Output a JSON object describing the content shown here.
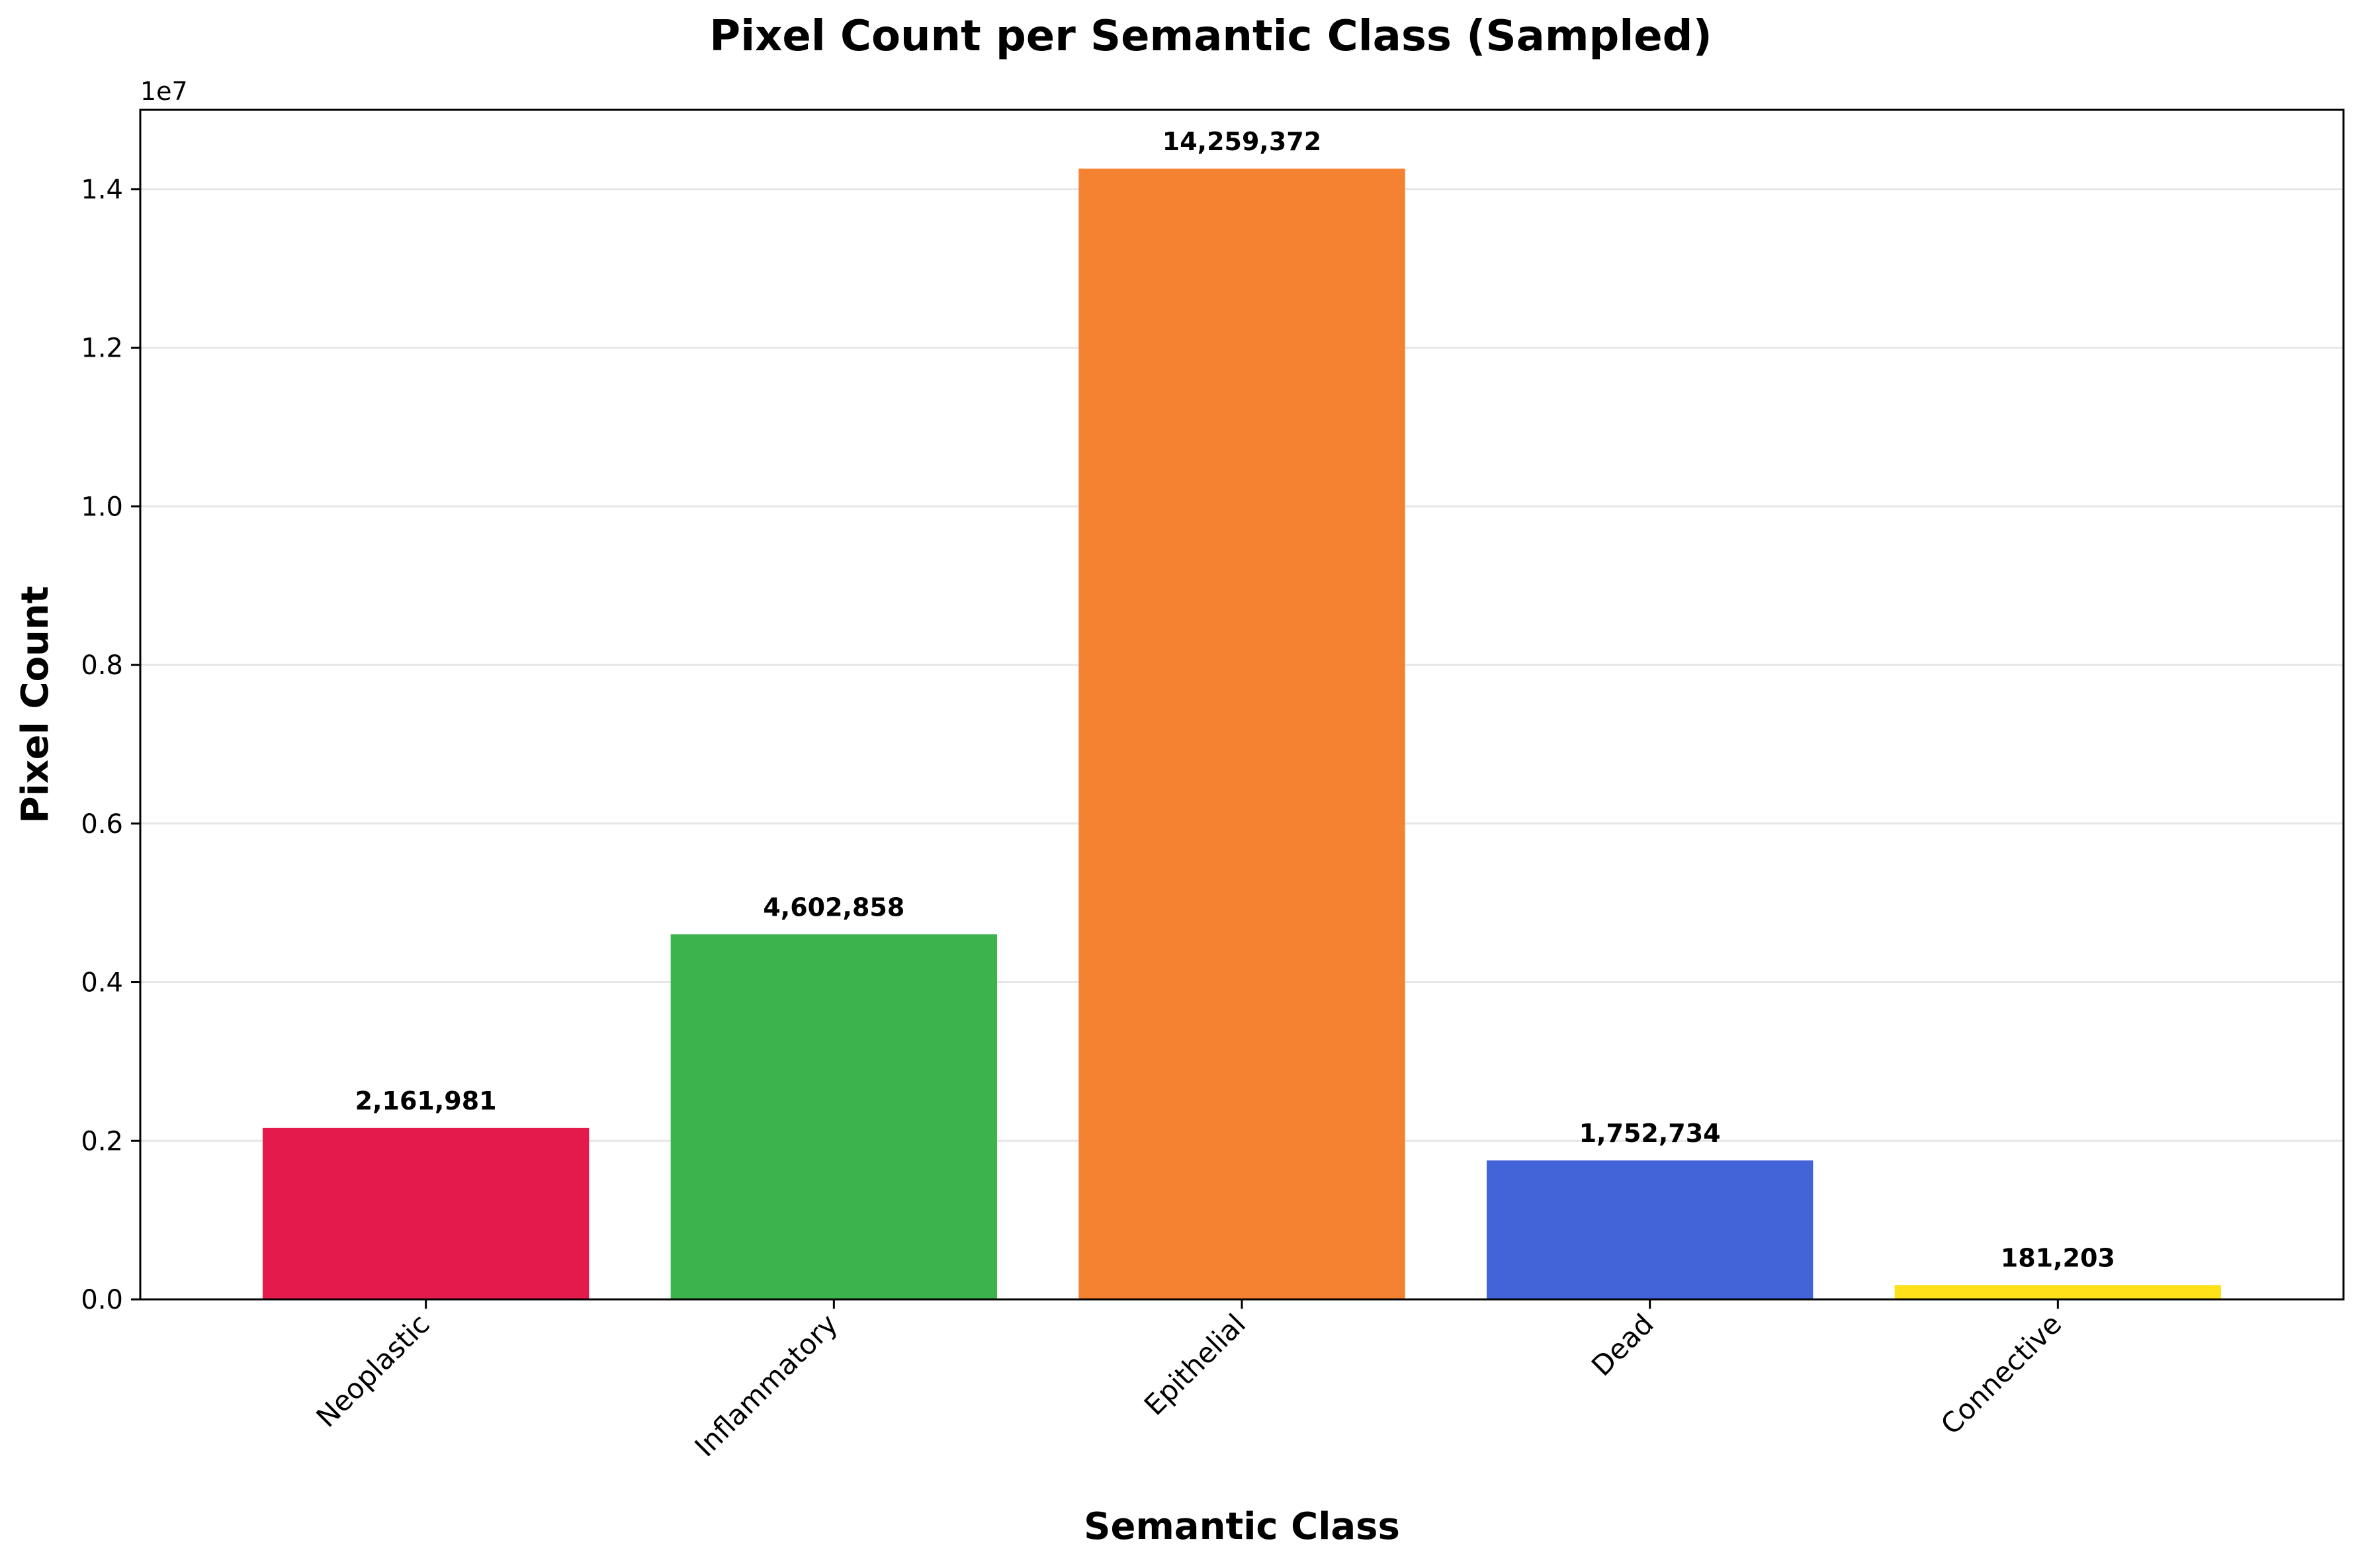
{
  "chart_data": {
    "type": "bar",
    "title": "Pixel Count per Semantic Class (Sampled)",
    "xlabel": "Semantic Class",
    "ylabel": "Pixel Count",
    "offset_label": "1e7",
    "categories": [
      "Neoplastic",
      "Inflammatory",
      "Epithelial",
      "Dead",
      "Connective"
    ],
    "values": [
      2161981,
      4602858,
      14259372,
      1752734,
      181203
    ],
    "value_labels": [
      "2,161,981",
      "4,602,858",
      "14,259,372",
      "1,752,734",
      "181,203"
    ],
    "colors": [
      "#e31a4b",
      "#3cb44b",
      "#f58231",
      "#4363d8",
      "#ffe119"
    ],
    "ylim": [
      0,
      15000000
    ],
    "yticks": [
      0,
      2000000,
      4000000,
      6000000,
      8000000,
      10000000,
      12000000,
      14000000
    ],
    "ytick_labels": [
      "0.0",
      "0.2",
      "0.4",
      "0.6",
      "0.8",
      "1.0",
      "1.2",
      "1.4"
    ],
    "grid": "y",
    "legend": "none"
  }
}
